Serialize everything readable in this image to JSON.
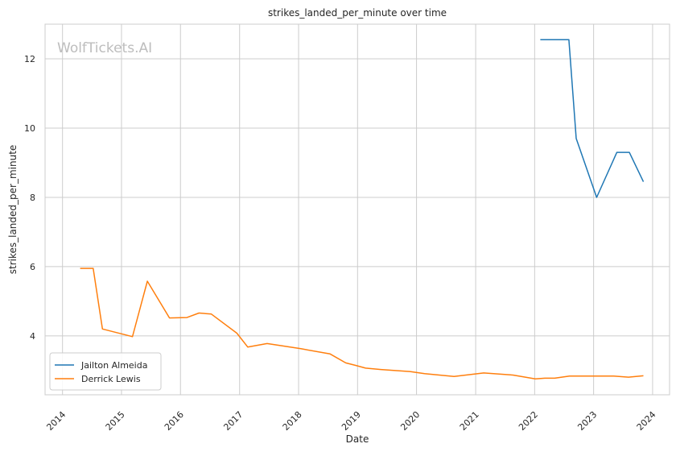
{
  "chart_data": {
    "type": "line",
    "title": "strikes_landed_per_minute over time",
    "xlabel": "Date",
    "ylabel": "strikes_landed_per_minute",
    "watermark": "WolfTickets.AI",
    "x_range": [
      "2013-09-15",
      "2024-04-15"
    ],
    "ylim": [
      2.3,
      13.0
    ],
    "grid": true,
    "legend_placement": "lower-left",
    "x_ticks": [
      "2014",
      "2015",
      "2016",
      "2017",
      "2018",
      "2019",
      "2020",
      "2021",
      "2022",
      "2023",
      "2024"
    ],
    "y_ticks": [
      4,
      6,
      8,
      10,
      12
    ],
    "series": [
      {
        "name": "Jailton Almeida",
        "color": "#1f77b4",
        "points": [
          [
            "2022-02-05",
            12.55
          ],
          [
            "2022-08-01",
            12.55
          ],
          [
            "2022-09-15",
            9.7
          ],
          [
            "2023-01-20",
            8.0
          ],
          [
            "2023-05-25",
            9.3
          ],
          [
            "2023-08-10",
            9.3
          ],
          [
            "2023-11-05",
            8.45
          ]
        ]
      },
      {
        "name": "Derrick Lewis",
        "color": "#ff7f0e",
        "points": [
          [
            "2014-04-20",
            5.95
          ],
          [
            "2014-07-10",
            5.95
          ],
          [
            "2014-09-05",
            4.2
          ],
          [
            "2015-03-10",
            3.98
          ],
          [
            "2015-06-10",
            5.58
          ],
          [
            "2015-10-25",
            4.52
          ],
          [
            "2016-02-10",
            4.53
          ],
          [
            "2016-04-25",
            4.66
          ],
          [
            "2016-07-10",
            4.63
          ],
          [
            "2016-12-15",
            4.08
          ],
          [
            "2017-02-20",
            3.68
          ],
          [
            "2017-06-20",
            3.78
          ],
          [
            "2018-01-15",
            3.63
          ],
          [
            "2018-07-15",
            3.48
          ],
          [
            "2018-10-20",
            3.22
          ],
          [
            "2018-12-20",
            3.15
          ],
          [
            "2019-02-20",
            3.07
          ],
          [
            "2019-05-25",
            3.03
          ],
          [
            "2019-11-25",
            2.97
          ],
          [
            "2020-02-20",
            2.91
          ],
          [
            "2020-08-20",
            2.83
          ],
          [
            "2021-02-20",
            2.93
          ],
          [
            "2021-08-20",
            2.87
          ],
          [
            "2022-01-05",
            2.76
          ],
          [
            "2022-03-05",
            2.78
          ],
          [
            "2022-05-05",
            2.78
          ],
          [
            "2022-08-05",
            2.84
          ],
          [
            "2023-01-05",
            2.84
          ],
          [
            "2023-05-05",
            2.84
          ],
          [
            "2023-08-05",
            2.81
          ],
          [
            "2023-11-05",
            2.85
          ]
        ]
      }
    ]
  }
}
